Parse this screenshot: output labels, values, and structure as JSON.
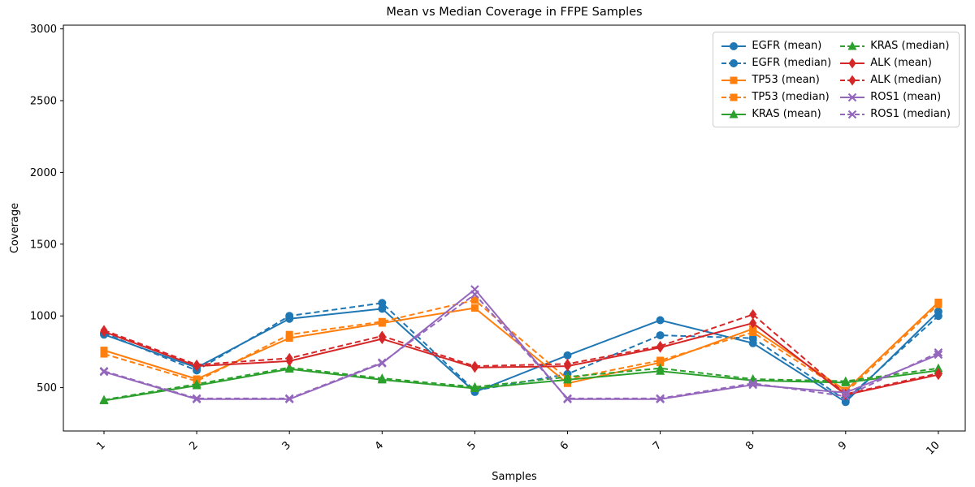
{
  "figure": {
    "background": "#ffffff",
    "text_color": "#000000"
  },
  "chart_data": {
    "type": "line",
    "title": "Mean vs Median Coverage in FFPE Samples",
    "xlabel": "Samples",
    "ylabel": "Coverage",
    "x": [
      1,
      2,
      3,
      4,
      5,
      6,
      7,
      8,
      9,
      10
    ],
    "xtick_labels": [
      "1",
      "2",
      "3",
      "4",
      "5",
      "6",
      "7",
      "8",
      "9",
      "10"
    ],
    "yticks": [
      500,
      1000,
      1500,
      2000,
      2500,
      3000
    ],
    "ylim": [
      198,
      3026
    ],
    "grid": false,
    "legend_position": "top-right",
    "series": [
      {
        "name": "EGFR (mean)",
        "color": "#1f77b4",
        "marker": "circle",
        "dash": false,
        "values": [
          870,
          640,
          980,
          1050,
          470,
          725,
          970,
          810,
          400,
          1030
        ]
      },
      {
        "name": "EGFR (median)",
        "color": "#1f77b4",
        "marker": "circle",
        "dash": true,
        "values": [
          880,
          620,
          1000,
          1090,
          480,
          595,
          865,
          845,
          415,
          1000
        ]
      },
      {
        "name": "TP53 (mean)",
        "color": "#ff7f0e",
        "marker": "square",
        "dash": false,
        "values": [
          760,
          560,
          845,
          950,
          1055,
          530,
          675,
          910,
          480,
          1095
        ]
      },
      {
        "name": "TP53 (median)",
        "color": "#ff7f0e",
        "marker": "square",
        "dash": true,
        "values": [
          735,
          545,
          870,
          960,
          1110,
          560,
          690,
          885,
          465,
          1080
        ]
      },
      {
        "name": "KRAS (mean)",
        "color": "#2ca02c",
        "marker": "triangle",
        "dash": false,
        "values": [
          410,
          515,
          630,
          555,
          495,
          555,
          615,
          550,
          535,
          620
        ]
      },
      {
        "name": "KRAS (median)",
        "color": "#2ca02c",
        "marker": "triangle",
        "dash": true,
        "values": [
          415,
          525,
          640,
          565,
          505,
          575,
          635,
          560,
          545,
          635
        ]
      },
      {
        "name": "ALK (mean)",
        "color": "#d62728",
        "marker": "diamond",
        "dash": false,
        "values": [
          890,
          650,
          685,
          840,
          640,
          650,
          780,
          950,
          450,
          590
        ]
      },
      {
        "name": "ALK (median)",
        "color": "#d62728",
        "marker": "diamond",
        "dash": true,
        "values": [
          900,
          660,
          705,
          860,
          650,
          665,
          790,
          1010,
          455,
          600
        ]
      },
      {
        "name": "ROS1 (mean)",
        "color": "#9467bd",
        "marker": "x",
        "dash": false,
        "values": [
          610,
          420,
          420,
          670,
          1185,
          420,
          420,
          520,
          465,
          730
        ]
      },
      {
        "name": "ROS1 (median)",
        "color": "#9467bd",
        "marker": "x",
        "dash": true,
        "values": [
          615,
          425,
          425,
          675,
          1150,
          425,
          425,
          530,
          440,
          745
        ]
      }
    ]
  }
}
